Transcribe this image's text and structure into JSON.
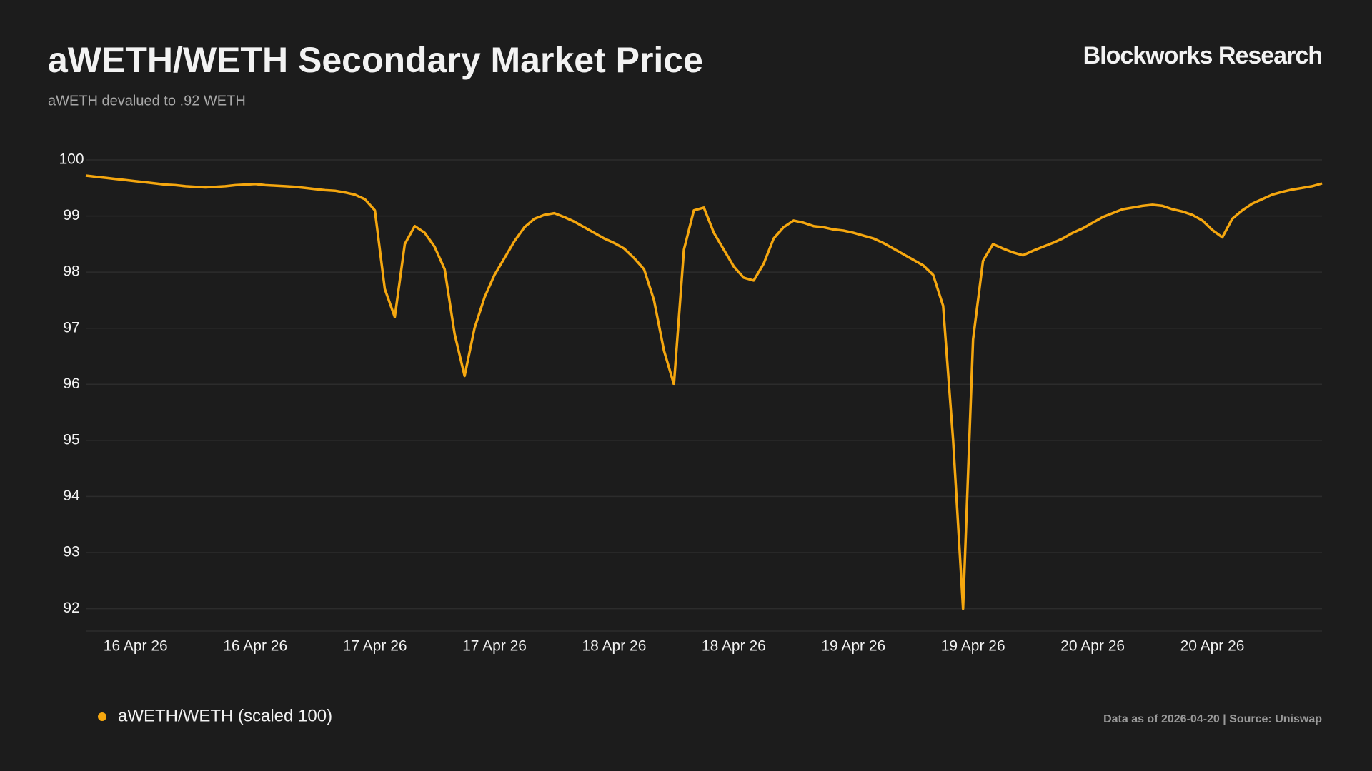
{
  "chart_data": {
    "type": "line",
    "title": "aWETH/WETH Secondary Market Price",
    "subtitle": "aWETH devalued to .92 WETH",
    "brand": "Blockworks Research",
    "source": "Data as of 2026-04-20 | Source: Uniswap",
    "legend": "bottom-left",
    "grid": true,
    "xlim": [
      0,
      124
    ],
    "xticks": [
      {
        "value": 5,
        "label": "16 Apr 26"
      },
      {
        "value": 17,
        "label": "16 Apr 26"
      },
      {
        "value": 29,
        "label": "17 Apr 26"
      },
      {
        "value": 41,
        "label": "17 Apr 26"
      },
      {
        "value": 53,
        "label": "18 Apr 26"
      },
      {
        "value": 65,
        "label": "18 Apr 26"
      },
      {
        "value": 77,
        "label": "19 Apr 26"
      },
      {
        "value": 89,
        "label": "19 Apr 26"
      },
      {
        "value": 101,
        "label": "20 Apr 26"
      },
      {
        "value": 113,
        "label": "20 Apr 26"
      }
    ],
    "ylim": [
      91.6,
      100
    ],
    "yticks": [
      92,
      93,
      94,
      95,
      96,
      97,
      98,
      99,
      100
    ],
    "series": [
      {
        "name": "aWETH/WETH (scaled 100)",
        "color": "#f5a70f",
        "values": [
          99.72,
          99.7,
          99.68,
          99.66,
          99.64,
          99.62,
          99.6,
          99.58,
          99.56,
          99.55,
          99.53,
          99.52,
          99.51,
          99.52,
          99.53,
          99.55,
          99.56,
          99.57,
          99.55,
          99.54,
          99.53,
          99.52,
          99.5,
          99.48,
          99.46,
          99.45,
          99.42,
          99.38,
          99.3,
          99.1,
          97.7,
          97.2,
          98.5,
          98.82,
          98.7,
          98.45,
          98.05,
          96.9,
          96.15,
          97.0,
          97.55,
          97.95,
          98.25,
          98.55,
          98.8,
          98.95,
          99.02,
          99.05,
          98.98,
          98.9,
          98.8,
          98.7,
          98.6,
          98.52,
          98.42,
          98.25,
          98.05,
          97.5,
          96.6,
          96.0,
          98.4,
          99.1,
          99.15,
          98.7,
          98.4,
          98.1,
          97.9,
          97.85,
          98.15,
          98.6,
          98.8,
          98.92,
          98.88,
          98.82,
          98.8,
          98.76,
          98.74,
          98.7,
          98.65,
          98.6,
          98.52,
          98.42,
          98.32,
          98.22,
          98.12,
          97.95,
          97.4,
          95.0,
          92.0,
          96.8,
          98.2,
          98.5,
          98.42,
          98.35,
          98.3,
          98.38,
          98.45,
          98.52,
          98.6,
          98.7,
          98.78,
          98.88,
          98.98,
          99.05,
          99.12,
          99.15,
          99.18,
          99.2,
          99.18,
          99.12,
          99.08,
          99.02,
          98.92,
          98.75,
          98.62,
          98.95,
          99.1,
          99.22,
          99.3,
          99.38,
          99.43,
          99.47,
          99.5,
          99.53,
          99.58
        ]
      }
    ]
  }
}
